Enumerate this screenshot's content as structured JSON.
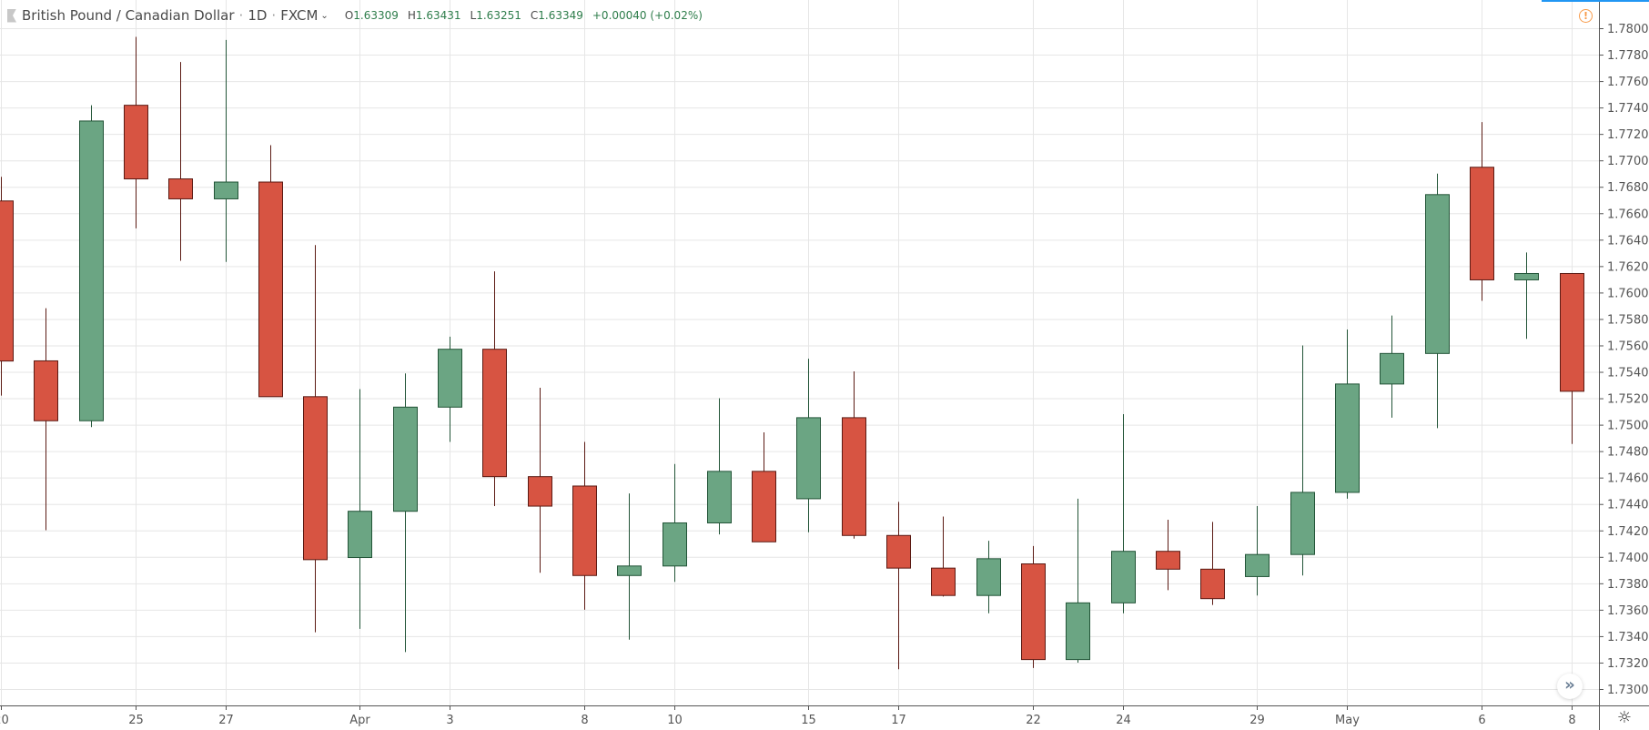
{
  "header": {
    "symbol": "British Pound / Canadian Dollar",
    "interval": "1D",
    "source": "FXCM",
    "open_label": "O",
    "open": "1.63309",
    "high_label": "H",
    "high": "1.63431",
    "low_label": "L",
    "low": "1.63251",
    "close_label": "C",
    "close": "1.63349",
    "change": "+0.00040 (+0.02%)"
  },
  "icons": {
    "warning": "warning-circle-icon",
    "scroll": "double-chevron-right-icon",
    "settings": "gear-icon",
    "symbol_flag": "flag-icon"
  },
  "colors": {
    "up": "#6ba583",
    "down": "#d75442",
    "up_border": "#225437",
    "down_border": "#5b1a13",
    "grid": "#e6e6e6",
    "accent": "#2196f3",
    "warning": "#f89b4a"
  },
  "chart_data": {
    "type": "candlestick",
    "grid": true,
    "ylim": [
      1.7285,
      1.781
    ],
    "y_ticks": [
      "1.78000",
      "1.77800",
      "1.77600",
      "1.77400",
      "1.77200",
      "1.77000",
      "1.76800",
      "1.76600",
      "1.76400",
      "1.76200",
      "1.76000",
      "1.75800",
      "1.75600",
      "1.75400",
      "1.75200",
      "1.75000",
      "1.74800",
      "1.74600",
      "1.74400",
      "1.74200",
      "1.74000",
      "1.73800",
      "1.73600",
      "1.73400",
      "1.73200",
      "1.73000"
    ],
    "x_ticks": [
      {
        "label": "20",
        "date": "Mar 20"
      },
      {
        "label": "25",
        "date": "Mar 25"
      },
      {
        "label": "27",
        "date": "Mar 27"
      },
      {
        "label": "Apr",
        "date": "Apr 1"
      },
      {
        "label": "3",
        "date": "Apr 3"
      },
      {
        "label": "8",
        "date": "Apr 8"
      },
      {
        "label": "10",
        "date": "Apr 10"
      },
      {
        "label": "15",
        "date": "Apr 15"
      },
      {
        "label": "17",
        "date": "Apr 17"
      },
      {
        "label": "22",
        "date": "Apr 22"
      },
      {
        "label": "24",
        "date": "Apr 24"
      },
      {
        "label": "29",
        "date": "Apr 29"
      },
      {
        "label": "May",
        "date": "May 1"
      },
      {
        "label": "6",
        "date": "May 6"
      },
      {
        "label": "8",
        "date": "May 8"
      }
    ],
    "candles": [
      {
        "date": "Mar 20",
        "o": 1.76693,
        "h": 1.76876,
        "l": 1.7522,
        "c": 1.75482
      },
      {
        "date": "Mar 21",
        "o": 1.75483,
        "h": 1.75881,
        "l": 1.74202,
        "c": 1.7503
      },
      {
        "date": "Mar 22",
        "o": 1.7503,
        "h": 1.77417,
        "l": 1.74982,
        "c": 1.77298
      },
      {
        "date": "Mar 25",
        "o": 1.77417,
        "h": 1.77935,
        "l": 1.76486,
        "c": 1.7686
      },
      {
        "date": "Mar 26",
        "o": 1.7686,
        "h": 1.77744,
        "l": 1.7624,
        "c": 1.76709
      },
      {
        "date": "Mar 27",
        "o": 1.76709,
        "h": 1.77911,
        "l": 1.76232,
        "c": 1.76836
      },
      {
        "date": "Mar 28",
        "o": 1.76836,
        "h": 1.77115,
        "l": 1.75212,
        "c": 1.75212
      },
      {
        "date": "Mar 29",
        "o": 1.75212,
        "h": 1.76359,
        "l": 1.7343,
        "c": 1.73979
      },
      {
        "date": "Apr 1",
        "o": 1.73995,
        "h": 1.75269,
        "l": 1.73455,
        "c": 1.74345
      },
      {
        "date": "Apr 2",
        "o": 1.74345,
        "h": 1.75388,
        "l": 1.7328,
        "c": 1.75133
      },
      {
        "date": "Apr 3",
        "o": 1.75133,
        "h": 1.75666,
        "l": 1.7487,
        "c": 1.75571
      },
      {
        "date": "Apr 4",
        "o": 1.75571,
        "h": 1.7616,
        "l": 1.74384,
        "c": 1.74607
      },
      {
        "date": "Apr 5",
        "o": 1.74607,
        "h": 1.7528,
        "l": 1.7388,
        "c": 1.74384
      },
      {
        "date": "Apr 8",
        "o": 1.74536,
        "h": 1.7487,
        "l": 1.736,
        "c": 1.73859
      },
      {
        "date": "Apr 9",
        "o": 1.73859,
        "h": 1.7448,
        "l": 1.73374,
        "c": 1.73931
      },
      {
        "date": "Apr 10",
        "o": 1.73931,
        "h": 1.74703,
        "l": 1.73811,
        "c": 1.74257
      },
      {
        "date": "Apr 11",
        "o": 1.74257,
        "h": 1.752,
        "l": 1.7417,
        "c": 1.74647
      },
      {
        "date": "Apr 12",
        "o": 1.74647,
        "h": 1.74942,
        "l": 1.74114,
        "c": 1.74114
      },
      {
        "date": "Apr 15",
        "o": 1.7444,
        "h": 1.75499,
        "l": 1.74186,
        "c": 1.75053
      },
      {
        "date": "Apr 16",
        "o": 1.75053,
        "h": 1.75404,
        "l": 1.74138,
        "c": 1.74162
      },
      {
        "date": "Apr 17",
        "o": 1.74162,
        "h": 1.74416,
        "l": 1.7315,
        "c": 1.73915
      },
      {
        "date": "Apr 18",
        "o": 1.73915,
        "h": 1.74305,
        "l": 1.737,
        "c": 1.73708
      },
      {
        "date": "Apr 19",
        "o": 1.73708,
        "h": 1.74122,
        "l": 1.73573,
        "c": 1.73986
      },
      {
        "date": "Apr 22",
        "o": 1.73947,
        "h": 1.74082,
        "l": 1.73159,
        "c": 1.73223
      },
      {
        "date": "Apr 23",
        "o": 1.73223,
        "h": 1.7444,
        "l": 1.732,
        "c": 1.73652
      },
      {
        "date": "Apr 24",
        "o": 1.73652,
        "h": 1.7508,
        "l": 1.73573,
        "c": 1.74042
      },
      {
        "date": "Apr 25",
        "o": 1.74042,
        "h": 1.74281,
        "l": 1.73748,
        "c": 1.73907
      },
      {
        "date": "Apr 26",
        "o": 1.73907,
        "h": 1.74265,
        "l": 1.73636,
        "c": 1.73684
      },
      {
        "date": "Apr 29",
        "o": 1.73851,
        "h": 1.74384,
        "l": 1.73708,
        "c": 1.74018
      },
      {
        "date": "Apr 30",
        "o": 1.74018,
        "h": 1.756,
        "l": 1.73859,
        "c": 1.74488
      },
      {
        "date": "May 1",
        "o": 1.74488,
        "h": 1.7572,
        "l": 1.7444,
        "c": 1.75308
      },
      {
        "date": "May 2",
        "o": 1.75308,
        "h": 1.75826,
        "l": 1.75053,
        "c": 1.75539
      },
      {
        "date": "May 3",
        "o": 1.75539,
        "h": 1.769,
        "l": 1.74974,
        "c": 1.76741
      },
      {
        "date": "May 6",
        "o": 1.76948,
        "h": 1.7729,
        "l": 1.75937,
        "c": 1.76096
      },
      {
        "date": "May 7",
        "o": 1.76096,
        "h": 1.76303,
        "l": 1.7565,
        "c": 1.76144
      },
      {
        "date": "May 8",
        "o": 1.76144,
        "h": 1.76144,
        "l": 1.74854,
        "c": 1.75253
      }
    ]
  }
}
